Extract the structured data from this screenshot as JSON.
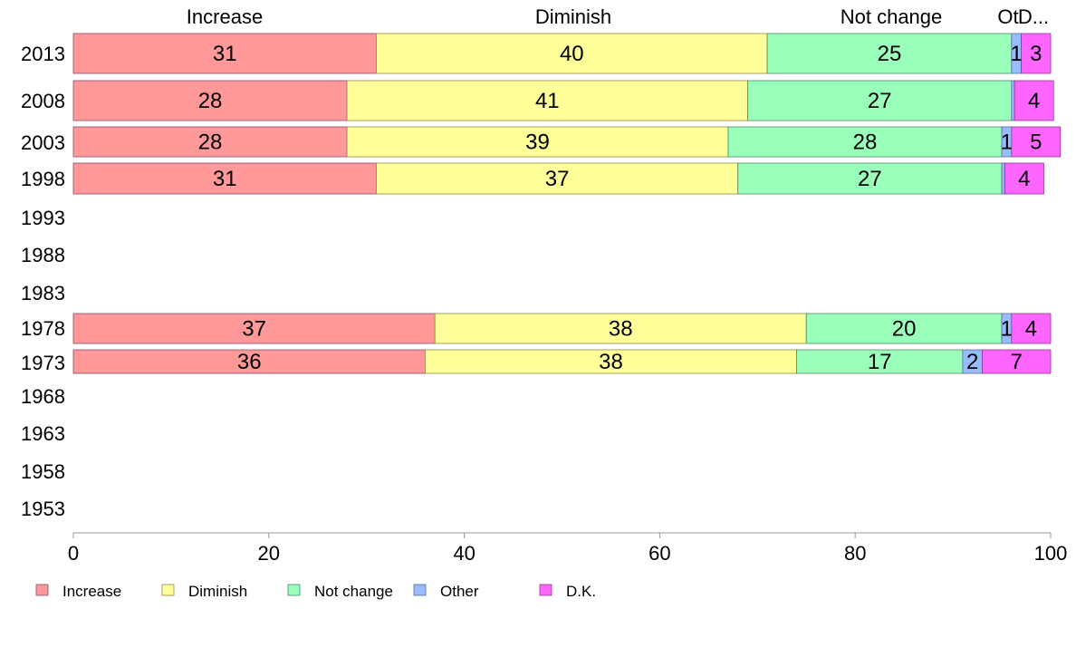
{
  "chart_data": {
    "type": "bar",
    "orientation": "horizontal",
    "stacked": true,
    "categories": [
      "2013",
      "2008",
      "2003",
      "1998",
      "1993",
      "1988",
      "1983",
      "1978",
      "1973",
      "1968",
      "1963",
      "1958",
      "1953"
    ],
    "series": [
      {
        "name": "Increase",
        "color": "#ff9999",
        "values": [
          31,
          28,
          28,
          31,
          null,
          null,
          null,
          37,
          36,
          null,
          null,
          null,
          null
        ]
      },
      {
        "name": "Diminish",
        "color": "#ffff99",
        "values": [
          40,
          41,
          39,
          37,
          null,
          null,
          null,
          38,
          38,
          null,
          null,
          null,
          null
        ]
      },
      {
        "name": "Not change",
        "color": "#99ffbb",
        "values": [
          25,
          27,
          28,
          27,
          null,
          null,
          null,
          20,
          17,
          null,
          null,
          null,
          null
        ]
      },
      {
        "name": "Other",
        "color": "#99bbff",
        "values": [
          1,
          0.3,
          1,
          0.3,
          null,
          null,
          null,
          1,
          2,
          null,
          null,
          null,
          null
        ]
      },
      {
        "name": "D.K.",
        "color": "#ff66ff",
        "values": [
          3,
          4,
          5,
          4,
          null,
          null,
          null,
          4,
          7,
          null,
          null,
          null,
          null
        ]
      }
    ],
    "segment_labels": [
      [
        "31",
        "40",
        "25",
        "1",
        "3"
      ],
      [
        "28",
        "41",
        "27",
        "",
        "4"
      ],
      [
        "28",
        "39",
        "28",
        "1",
        "5"
      ],
      [
        "31",
        "37",
        "27",
        "",
        "4"
      ],
      [],
      [],
      [],
      [
        "37",
        "38",
        "20",
        "1",
        "4"
      ],
      [
        "36",
        "38",
        "17",
        "2",
        "7"
      ],
      [],
      [],
      [],
      []
    ],
    "column_headers": [
      "Increase",
      "Diminish",
      "Not change",
      "Ot",
      "D..."
    ],
    "xlim": [
      0,
      100
    ],
    "xticks": [
      0,
      20,
      40,
      60,
      80,
      100
    ],
    "xtick_labels": [
      "0",
      "20",
      "40",
      "60",
      "80",
      "100"
    ],
    "grid": false,
    "legend": {
      "placement": "bottom-left",
      "entries": [
        "Increase",
        "Diminish",
        "Not change",
        "Other",
        "D.K."
      ]
    },
    "title": "",
    "xlabel": "",
    "ylabel": ""
  }
}
